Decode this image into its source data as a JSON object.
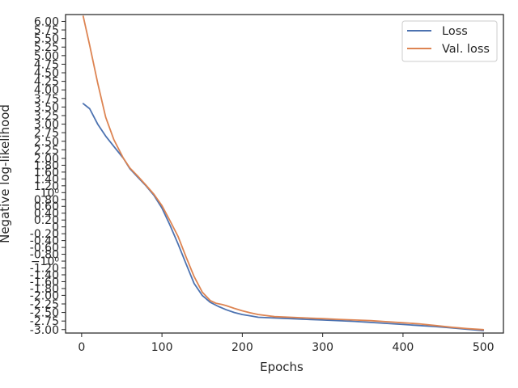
{
  "chart_data": {
    "type": "line",
    "xlabel": "Epochs",
    "ylabel": "Negative log-likelihood",
    "xlim": [
      -20,
      525
    ],
    "ylim": [
      -3.1,
      6.2
    ],
    "grid": false,
    "legend_position": "top-right",
    "x_ticks": [
      {
        "value": 0,
        "label": "0"
      },
      {
        "value": 100,
        "label": "100"
      },
      {
        "value": 200,
        "label": "200"
      },
      {
        "value": 300,
        "label": "300"
      },
      {
        "value": 400,
        "label": "400"
      },
      {
        "value": 500,
        "label": "500"
      }
    ],
    "y_ticks": [
      {
        "value": 6.0,
        "label": "6.00"
      },
      {
        "value": 5.75,
        "label": "5.75"
      },
      {
        "value": 5.5,
        "label": "5.50"
      },
      {
        "value": 5.25,
        "label": "5.25"
      },
      {
        "value": 5.0,
        "label": "5.00"
      },
      {
        "value": 4.75,
        "label": "4.75"
      },
      {
        "value": 4.5,
        "label": "4.50"
      },
      {
        "value": 4.25,
        "label": "4.25"
      },
      {
        "value": 4.0,
        "label": "4.00"
      },
      {
        "value": 3.75,
        "label": "3.75"
      },
      {
        "value": 3.5,
        "label": "3.50"
      },
      {
        "value": 3.25,
        "label": "3.25"
      },
      {
        "value": 3.0,
        "label": "3.00"
      },
      {
        "value": 2.75,
        "label": "2.75"
      },
      {
        "value": 2.5,
        "label": "2.50"
      },
      {
        "value": 2.25,
        "label": "2.25"
      },
      {
        "value": 2.0,
        "label": "2.00"
      },
      {
        "value": 1.8,
        "label": "1.80"
      },
      {
        "value": 1.6,
        "label": "1.60"
      },
      {
        "value": 1.4,
        "label": "1.40"
      },
      {
        "value": 1.2,
        "label": "1.20"
      },
      {
        "value": 1.0,
        "label": "10⁰"
      },
      {
        "value": 0.8,
        "label": "0.80"
      },
      {
        "value": 0.6,
        "label": "0.60"
      },
      {
        "value": 0.4,
        "label": "0.40"
      },
      {
        "value": 0.2,
        "label": "0.20"
      },
      {
        "value": 0.0,
        "label": "0"
      },
      {
        "value": -0.2,
        "label": "-0.20"
      },
      {
        "value": -0.4,
        "label": "-0.40"
      },
      {
        "value": -0.6,
        "label": "-0.60"
      },
      {
        "value": -0.8,
        "label": "-0.80"
      },
      {
        "value": -1.0,
        "label": "−10⁰"
      },
      {
        "value": -1.2,
        "label": "-1.20"
      },
      {
        "value": -1.4,
        "label": "-1.40"
      },
      {
        "value": -1.6,
        "label": "-1.60"
      },
      {
        "value": -1.8,
        "label": "-1.80"
      },
      {
        "value": -2.0,
        "label": "-2.00"
      },
      {
        "value": -2.25,
        "label": "-2.25"
      },
      {
        "value": -2.5,
        "label": "-2.50"
      },
      {
        "value": -2.75,
        "label": "-2.75"
      },
      {
        "value": -3.0,
        "label": "-3.00"
      }
    ],
    "series": [
      {
        "name": "Loss",
        "color": "#4c72b0",
        "x": [
          2,
          10,
          20,
          30,
          40,
          52,
          60,
          70,
          80,
          90,
          100,
          110,
          120,
          130,
          140,
          150,
          160,
          170,
          180,
          190,
          200,
          210,
          220,
          240,
          260,
          280,
          300,
          320,
          340,
          360,
          380,
          400,
          420,
          440,
          460,
          480,
          500
        ],
        "y": [
          3.6,
          3.45,
          3.0,
          2.65,
          2.35,
          2.0,
          1.7,
          1.45,
          1.2,
          0.92,
          0.55,
          0.05,
          -0.5,
          -1.08,
          -1.65,
          -2.0,
          -2.2,
          -2.32,
          -2.42,
          -2.5,
          -2.56,
          -2.6,
          -2.64,
          -2.66,
          -2.68,
          -2.7,
          -2.72,
          -2.74,
          -2.76,
          -2.79,
          -2.82,
          -2.85,
          -2.88,
          -2.91,
          -2.95,
          -2.99,
          -3.03
        ]
      },
      {
        "name": "Val. loss",
        "color": "#dd8452",
        "x": [
          2,
          10,
          20,
          30,
          40,
          52,
          60,
          70,
          80,
          90,
          100,
          110,
          120,
          130,
          140,
          150,
          160,
          167,
          175,
          180,
          190,
          200,
          210,
          220,
          240,
          260,
          280,
          300,
          320,
          340,
          360,
          380,
          400,
          420,
          440,
          460,
          480,
          500
        ],
        "y": [
          6.15,
          5.3,
          4.2,
          3.2,
          2.55,
          2.0,
          1.72,
          1.48,
          1.22,
          0.95,
          0.62,
          0.18,
          -0.28,
          -0.88,
          -1.45,
          -1.9,
          -2.15,
          -2.23,
          -2.27,
          -2.3,
          -2.38,
          -2.45,
          -2.51,
          -2.56,
          -2.62,
          -2.64,
          -2.66,
          -2.68,
          -2.7,
          -2.72,
          -2.74,
          -2.77,
          -2.8,
          -2.83,
          -2.88,
          -2.93,
          -2.97,
          -3.0
        ]
      }
    ]
  }
}
